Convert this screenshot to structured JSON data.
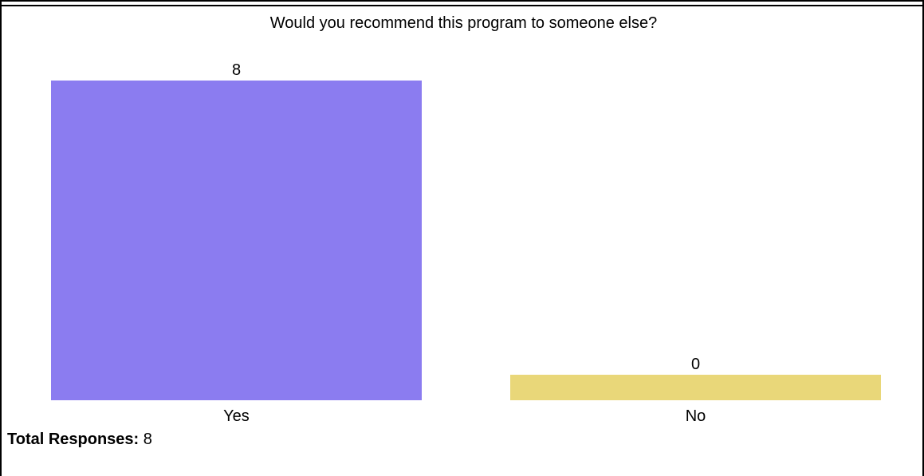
{
  "chart_data": {
    "type": "bar",
    "title": "Would you recommend this program to someone else?",
    "categories": [
      "Yes",
      "No"
    ],
    "values": [
      8,
      0
    ],
    "value_labels": [
      "8",
      "0"
    ],
    "colors": [
      "#8b7cf0",
      "#e9d779"
    ],
    "xlabel": "",
    "ylabel": "",
    "grid": false,
    "axes_visible": false
  },
  "summary": {
    "total_label": "Total Responses:",
    "total_value": "8"
  }
}
